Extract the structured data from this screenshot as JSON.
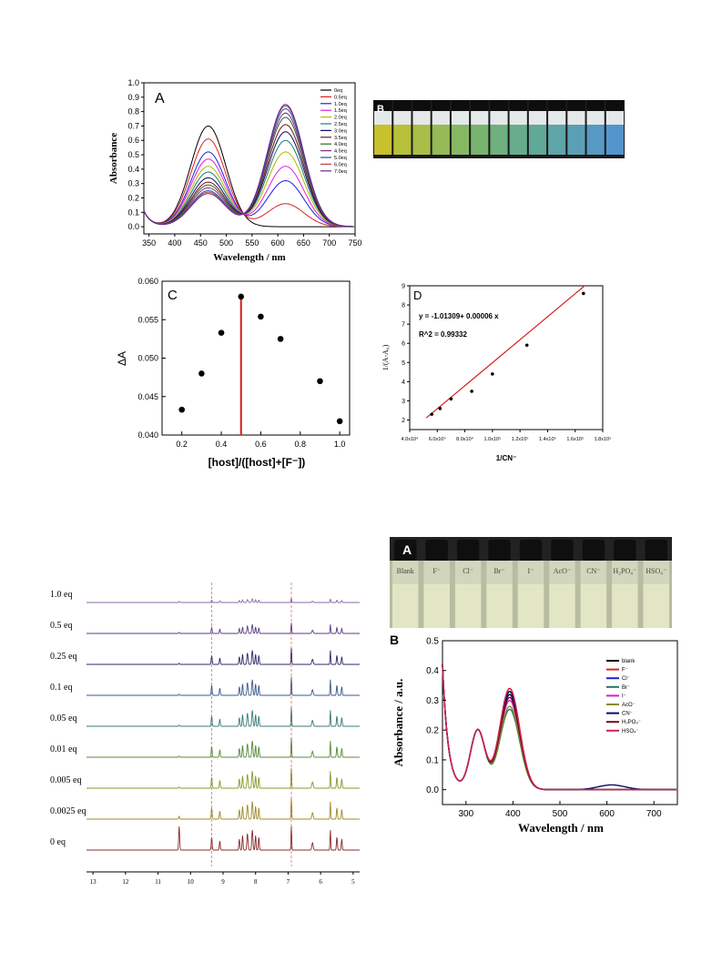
{
  "panel_A": {
    "letter": "A",
    "xlabel": "Wavelength / nm",
    "ylabel": "Absorbance",
    "xticks": [
      350,
      400,
      450,
      500,
      550,
      600,
      650,
      700,
      750
    ],
    "yticks": [
      "0.0",
      "0.1",
      "0.2",
      "0.3",
      "0.4",
      "0.5",
      "0.6",
      "0.7",
      "0.8",
      "0.9",
      "1.0"
    ],
    "legend": [
      "0eq",
      "0.5eq",
      "1.0eq",
      "1.5eq",
      "2.0eq",
      "2.5eq",
      "3.0eq",
      "3.5eq",
      "4.0eq",
      "4.5eq",
      "5.0eq",
      "6.0eq",
      "7.0eq"
    ],
    "colors": [
      "#000000",
      "#e02020",
      "#2020e0",
      "#e020e0",
      "#b8b800",
      "#1f7a7a",
      "#0a0a6a",
      "#7a1010",
      "#2a6a2a",
      "#8a2a8a",
      "#1a5aa0",
      "#c04040",
      "#5a2a9a"
    ]
  },
  "panel_B_top": {
    "letter": "B",
    "vial_colors": [
      "#c8c02c",
      "#b8c03a",
      "#a8be48",
      "#96ba56",
      "#86b864",
      "#78b470",
      "#6eb07e",
      "#66ac8c",
      "#60a898",
      "#5ea4a8",
      "#5a9fb6",
      "#5699c2",
      "#5494cc"
    ]
  },
  "panel_C": {
    "letter": "C",
    "xlabel": "[host]/([host]+[F⁻])",
    "ylabel": "ΔA",
    "xticks": [
      "0.2",
      "0.4",
      "0.6",
      "0.8",
      "1.0"
    ],
    "yticks": [
      "0.040",
      "0.045",
      "0.050",
      "0.055",
      "0.060"
    ]
  },
  "panel_D": {
    "letter": "D",
    "xlabel": "1/CN⁻",
    "ylabel": "1/(A-A₀)",
    "equation": "y = -1.01309+ 0.00006 x",
    "r2": "R^2 = 0.99332",
    "xticks": [
      "4.0x10⁴",
      "6.0x10⁴",
      "8.0x10⁴",
      "1.0x10⁵",
      "1.2x10⁵",
      "1.4x10⁵",
      "1.6x10⁵",
      "1.8x10⁵"
    ],
    "yticks": [
      "2",
      "3",
      "4",
      "5",
      "6",
      "7",
      "8",
      "9"
    ]
  },
  "panel_NMR": {
    "labels": [
      "1.0 eq",
      "0.5 eq",
      "0.25 eq",
      "0.1 eq",
      "0.05 eq",
      "0.01 eq",
      "0.005 eq",
      "0.0025 eq",
      "0 eq"
    ],
    "xticks": [
      "13",
      "12",
      "11",
      "10",
      "9",
      "8",
      "7",
      "6",
      "5"
    ],
    "colors": [
      "#8a6aa0",
      "#5a3a8a",
      "#2a2a6a",
      "#3a5a8a",
      "#3a7a7a",
      "#5a8a3a",
      "#8a9a2a",
      "#a08a2a",
      "#8a2a2a"
    ]
  },
  "panel_E_top": {
    "letter": "A",
    "vial_labels": [
      "Blank",
      "F⁻",
      "Cl⁻",
      "Br⁻",
      "I⁻",
      "AcO⁻",
      "CN⁻",
      "H₂PO₄⁻",
      "HSO₄⁻"
    ]
  },
  "panel_E": {
    "letter": "B",
    "xlabel": "Wavelength / nm",
    "ylabel": "Absorbance / a.u.",
    "xticks": [
      300,
      400,
      500,
      600,
      700
    ],
    "yticks": [
      "0.0",
      "0.1",
      "0.2",
      "0.3",
      "0.4",
      "0.5"
    ],
    "legend": [
      "blank",
      "F⁻",
      "Cl⁻",
      "Br⁻",
      "I⁻",
      "AcO⁻",
      "CN⁻",
      "H₂PO₄⁻",
      "HSO₄⁻"
    ],
    "colors": [
      "#000000",
      "#e02020",
      "#2020d0",
      "#1f7a6a",
      "#d020d0",
      "#8a8a20",
      "#0a0a6a",
      "#6a1010",
      "#d02060"
    ]
  },
  "chart_data": [
    {
      "type": "line",
      "xlabel": "Wavelength / nm",
      "ylabel": "Absorbance",
      "xlim": [
        340,
        750
      ],
      "ylim": [
        -0.05,
        1.0
      ],
      "series_peaks": {
        "names": [
          "0eq",
          "0.5eq",
          "1.0eq",
          "1.5eq",
          "2.0eq",
          "2.5eq",
          "3.0eq",
          "3.5eq",
          "4.0eq",
          "4.5eq",
          "5.0eq",
          "6.0eq",
          "7.0eq"
        ],
        "peak_465": [
          0.7,
          0.61,
          0.52,
          0.47,
          0.42,
          0.38,
          0.34,
          0.31,
          0.29,
          0.27,
          0.25,
          0.24,
          0.23
        ],
        "peak_615": [
          0.0,
          0.16,
          0.32,
          0.42,
          0.52,
          0.6,
          0.66,
          0.71,
          0.76,
          0.79,
          0.82,
          0.84,
          0.85
        ]
      }
    },
    {
      "type": "scatter",
      "xlabel": "[host]/([host]+[F⁻])",
      "ylabel": "ΔA",
      "xlim": [
        0.1,
        1.05
      ],
      "ylim": [
        0.04,
        0.06
      ],
      "x": [
        0.2,
        0.3,
        0.4,
        0.5,
        0.6,
        0.7,
        0.9,
        1.0
      ],
      "y": [
        0.0433,
        0.048,
        0.0533,
        0.058,
        0.0554,
        0.0525,
        0.047,
        0.0418
      ],
      "vline_x": 0.5
    },
    {
      "type": "scatter",
      "xlabel": "1/CN⁻",
      "ylabel": "1/(A-A₀)",
      "xlim": [
        40000,
        180000
      ],
      "ylim": [
        1.5,
        9
      ],
      "x": [
        56000,
        62000,
        70000,
        85000,
        100000,
        125000,
        166000
      ],
      "y": [
        2.3,
        2.6,
        3.1,
        3.5,
        4.4,
        5.9,
        8.6
      ],
      "fit": {
        "slope": 6e-05,
        "intercept": -1.01309
      }
    },
    {
      "type": "line",
      "xlabel": "Wavelength / nm",
      "ylabel": "Absorbance / a.u.",
      "xlim": [
        250,
        750
      ],
      "ylim": [
        -0.05,
        0.5
      ],
      "series_peaks": {
        "names": [
          "blank",
          "F⁻",
          "Cl⁻",
          "Br⁻",
          "I⁻",
          "AcO⁻",
          "CN⁻",
          "H₂PO₄⁻",
          "HSO₄⁻"
        ],
        "peak_395": [
          0.33,
          0.34,
          0.32,
          0.27,
          0.3,
          0.28,
          0.32,
          0.31,
          0.34
        ],
        "band_610": [
          0.0,
          0.0,
          0.0,
          0.0,
          0.0,
          0.0,
          0.016,
          0.0,
          0.0
        ]
      }
    }
  ]
}
